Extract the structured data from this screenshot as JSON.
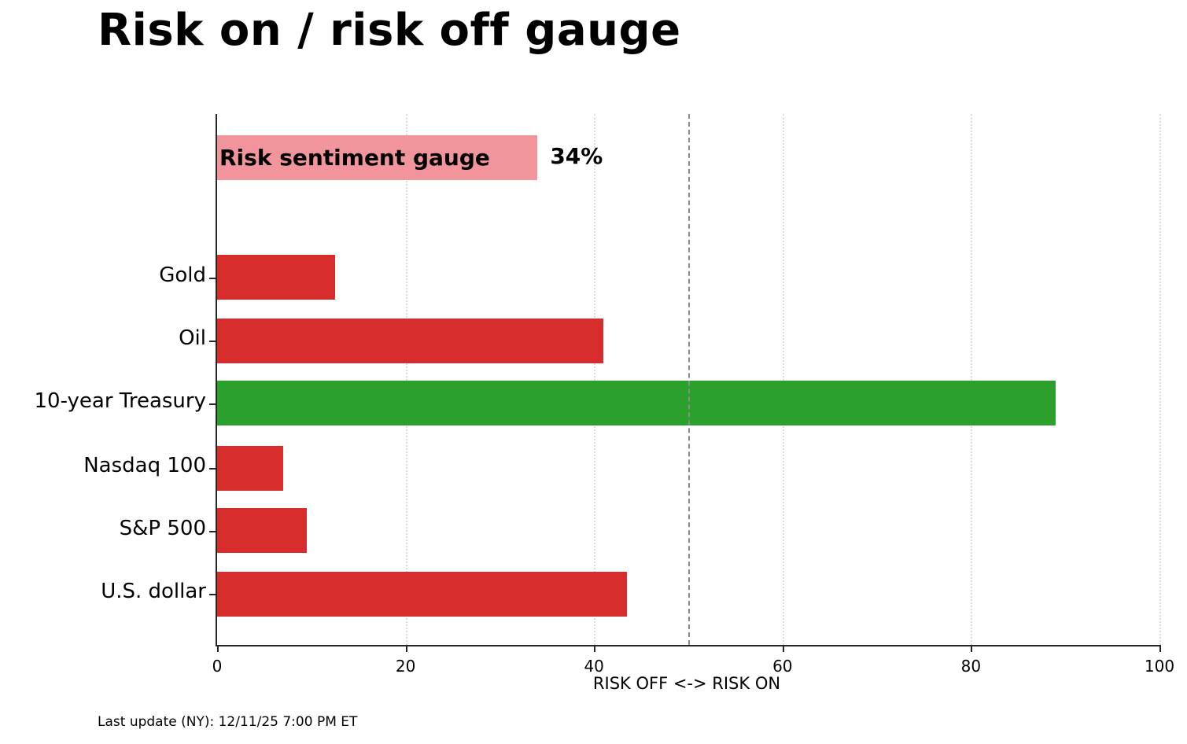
{
  "chart_data": {
    "type": "bar",
    "orientation": "horizontal",
    "title": "Risk on / risk off gauge",
    "xlabel": "RISK OFF <-> RISK ON",
    "xlim": [
      0,
      100
    ],
    "xticks": [
      0,
      20,
      40,
      60,
      80,
      100
    ],
    "reference_line": 50,
    "grid": "dotted-vertical",
    "series": [
      {
        "label": "Risk sentiment gauge",
        "value": 34,
        "color": "#f2949b",
        "annotation": "34%",
        "label_inside": true
      },
      {
        "label": "Gold",
        "value": 12.5,
        "color": "#d62c2c"
      },
      {
        "label": "Oil",
        "value": 41,
        "color": "#d62c2c"
      },
      {
        "label": "10-year Treasury",
        "value": 89,
        "color": "#2ca02c"
      },
      {
        "label": "Nasdaq 100",
        "value": 7,
        "color": "#d62c2c"
      },
      {
        "label": "S&P 500",
        "value": 9.5,
        "color": "#d62c2c"
      },
      {
        "label": "U.S. dollar",
        "value": 43.5,
        "color": "#d62c2c"
      }
    ],
    "footer": "Last update (NY): 12/11/25 7:00 PM ET"
  }
}
